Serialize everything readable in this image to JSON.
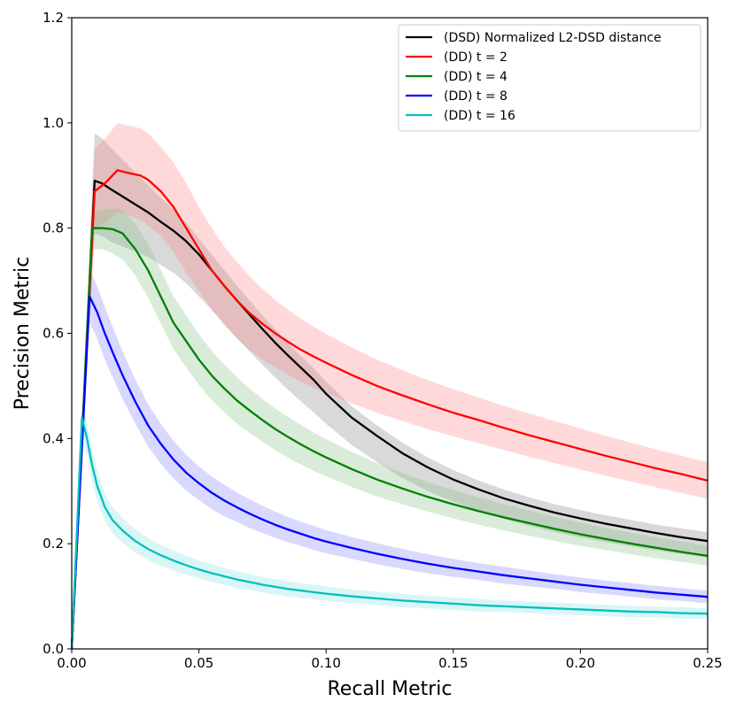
{
  "chart_data": {
    "type": "line",
    "title": "",
    "xlabel": "Recall Metric",
    "ylabel": "Precision Metric",
    "xlim": [
      0.0,
      0.25
    ],
    "ylim": [
      0.0,
      1.2
    ],
    "xticks": [
      0.0,
      0.05,
      0.1,
      0.15,
      0.2,
      0.25
    ],
    "xtick_labels": [
      "0.00",
      "0.05",
      "0.10",
      "0.15",
      "0.20",
      "0.25"
    ],
    "yticks": [
      0.0,
      0.2,
      0.4,
      0.6,
      0.8,
      1.0,
      1.2
    ],
    "ytick_labels": [
      "0.0",
      "0.2",
      "0.4",
      "0.6",
      "0.8",
      "1.0",
      "1.2"
    ],
    "grid": false,
    "legend_position": "top-right",
    "series": [
      {
        "name": "(DSD) Normalized L2-DSD distance",
        "color": "#000000",
        "band_color": "#808080",
        "x": [
          0.0,
          0.009,
          0.012,
          0.015,
          0.02,
          0.025,
          0.03,
          0.035,
          0.04,
          0.045,
          0.05,
          0.055,
          0.06,
          0.065,
          0.07,
          0.075,
          0.08,
          0.085,
          0.09,
          0.095,
          0.1,
          0.11,
          0.12,
          0.13,
          0.14,
          0.15,
          0.16,
          0.17,
          0.18,
          0.19,
          0.2,
          0.21,
          0.22,
          0.23,
          0.24,
          0.25
        ],
        "y": [
          0.0,
          0.89,
          0.885,
          0.875,
          0.86,
          0.845,
          0.83,
          0.812,
          0.795,
          0.775,
          0.75,
          0.72,
          0.69,
          0.662,
          0.635,
          0.608,
          0.582,
          0.558,
          0.535,
          0.512,
          0.485,
          0.44,
          0.405,
          0.372,
          0.345,
          0.322,
          0.303,
          0.286,
          0.272,
          0.259,
          0.248,
          0.238,
          0.229,
          0.22,
          0.212,
          0.205
        ],
        "upper": [
          0.0,
          0.98,
          0.97,
          0.955,
          0.93,
          0.905,
          0.882,
          0.858,
          0.835,
          0.81,
          0.78,
          0.75,
          0.72,
          0.69,
          0.662,
          0.634,
          0.607,
          0.582,
          0.557,
          0.534,
          0.508,
          0.462,
          0.425,
          0.392,
          0.364,
          0.34,
          0.32,
          0.303,
          0.288,
          0.275,
          0.264,
          0.254,
          0.245,
          0.236,
          0.229,
          0.222
        ],
        "lower": [
          0.0,
          0.79,
          0.785,
          0.775,
          0.765,
          0.755,
          0.745,
          0.73,
          0.715,
          0.695,
          0.67,
          0.645,
          0.618,
          0.59,
          0.565,
          0.54,
          0.516,
          0.493,
          0.471,
          0.45,
          0.428,
          0.388,
          0.355,
          0.325,
          0.3,
          0.28,
          0.262,
          0.247,
          0.234,
          0.222,
          0.212,
          0.203,
          0.195,
          0.187,
          0.18,
          0.174
        ]
      },
      {
        "name": "(DD) t = 2",
        "color": "#ff0000",
        "band_color": "#ff8080",
        "x": [
          0.0,
          0.009,
          0.013,
          0.018,
          0.022,
          0.027,
          0.03,
          0.035,
          0.04,
          0.045,
          0.05,
          0.055,
          0.06,
          0.065,
          0.07,
          0.075,
          0.08,
          0.085,
          0.09,
          0.095,
          0.1,
          0.11,
          0.12,
          0.13,
          0.14,
          0.15,
          0.16,
          0.17,
          0.18,
          0.19,
          0.2,
          0.21,
          0.22,
          0.23,
          0.24,
          0.25
        ],
        "y": [
          0.0,
          0.87,
          0.885,
          0.91,
          0.905,
          0.9,
          0.892,
          0.87,
          0.84,
          0.8,
          0.76,
          0.72,
          0.69,
          0.662,
          0.638,
          0.618,
          0.6,
          0.584,
          0.569,
          0.556,
          0.544,
          0.521,
          0.5,
          0.482,
          0.465,
          0.449,
          0.435,
          0.42,
          0.406,
          0.393,
          0.38,
          0.367,
          0.355,
          0.343,
          0.332,
          0.32
        ],
        "upper": [
          0.0,
          0.95,
          0.97,
          1.0,
          0.995,
          0.99,
          0.98,
          0.955,
          0.925,
          0.885,
          0.84,
          0.8,
          0.765,
          0.735,
          0.708,
          0.684,
          0.663,
          0.645,
          0.628,
          0.613,
          0.599,
          0.573,
          0.55,
          0.53,
          0.511,
          0.494,
          0.478,
          0.462,
          0.447,
          0.433,
          0.419,
          0.405,
          0.392,
          0.379,
          0.367,
          0.355
        ],
        "lower": [
          0.0,
          0.8,
          0.81,
          0.83,
          0.825,
          0.815,
          0.805,
          0.785,
          0.755,
          0.715,
          0.68,
          0.645,
          0.615,
          0.59,
          0.568,
          0.55,
          0.535,
          0.521,
          0.508,
          0.497,
          0.487,
          0.467,
          0.449,
          0.433,
          0.418,
          0.404,
          0.391,
          0.378,
          0.365,
          0.353,
          0.341,
          0.329,
          0.318,
          0.307,
          0.296,
          0.285
        ]
      },
      {
        "name": "(DD) t = 4",
        "color": "#008000",
        "band_color": "#80c080",
        "x": [
          0.0,
          0.008,
          0.012,
          0.016,
          0.02,
          0.025,
          0.03,
          0.035,
          0.04,
          0.045,
          0.05,
          0.055,
          0.06,
          0.065,
          0.07,
          0.075,
          0.08,
          0.085,
          0.09,
          0.095,
          0.1,
          0.11,
          0.12,
          0.13,
          0.14,
          0.15,
          0.16,
          0.17,
          0.18,
          0.19,
          0.2,
          0.21,
          0.22,
          0.23,
          0.24,
          0.25
        ],
        "y": [
          0.0,
          0.8,
          0.8,
          0.798,
          0.79,
          0.76,
          0.72,
          0.67,
          0.62,
          0.585,
          0.55,
          0.52,
          0.495,
          0.472,
          0.453,
          0.435,
          0.418,
          0.403,
          0.389,
          0.376,
          0.364,
          0.342,
          0.322,
          0.305,
          0.289,
          0.275,
          0.262,
          0.25,
          0.239,
          0.228,
          0.218,
          0.209,
          0.2,
          0.192,
          0.184,
          0.177
        ],
        "upper": [
          0.0,
          0.83,
          0.835,
          0.838,
          0.835,
          0.808,
          0.77,
          0.72,
          0.67,
          0.634,
          0.598,
          0.567,
          0.54,
          0.516,
          0.495,
          0.475,
          0.457,
          0.441,
          0.426,
          0.412,
          0.399,
          0.375,
          0.353,
          0.334,
          0.317,
          0.302,
          0.288,
          0.275,
          0.263,
          0.251,
          0.24,
          0.23,
          0.221,
          0.212,
          0.204,
          0.196
        ],
        "lower": [
          0.0,
          0.76,
          0.76,
          0.752,
          0.74,
          0.71,
          0.668,
          0.618,
          0.57,
          0.535,
          0.502,
          0.473,
          0.45,
          0.428,
          0.41,
          0.394,
          0.378,
          0.364,
          0.351,
          0.339,
          0.328,
          0.308,
          0.29,
          0.275,
          0.261,
          0.248,
          0.236,
          0.225,
          0.215,
          0.205,
          0.196,
          0.188,
          0.18,
          0.172,
          0.165,
          0.158
        ]
      },
      {
        "name": "(DD) t = 8",
        "color": "#0000ff",
        "band_color": "#8080ff",
        "x": [
          0.0,
          0.007,
          0.01,
          0.013,
          0.016,
          0.02,
          0.025,
          0.03,
          0.035,
          0.04,
          0.045,
          0.05,
          0.055,
          0.06,
          0.065,
          0.07,
          0.075,
          0.08,
          0.085,
          0.09,
          0.095,
          0.1,
          0.11,
          0.12,
          0.13,
          0.14,
          0.15,
          0.16,
          0.17,
          0.18,
          0.19,
          0.2,
          0.21,
          0.22,
          0.23,
          0.24,
          0.25
        ],
        "y": [
          0.0,
          0.67,
          0.64,
          0.6,
          0.565,
          0.52,
          0.47,
          0.425,
          0.39,
          0.36,
          0.335,
          0.315,
          0.297,
          0.282,
          0.269,
          0.257,
          0.246,
          0.236,
          0.227,
          0.219,
          0.211,
          0.204,
          0.192,
          0.181,
          0.171,
          0.162,
          0.154,
          0.147,
          0.14,
          0.134,
          0.128,
          0.122,
          0.117,
          0.112,
          0.107,
          0.103,
          0.099
        ],
        "upper": [
          0.0,
          0.72,
          0.69,
          0.65,
          0.613,
          0.565,
          0.512,
          0.465,
          0.428,
          0.396,
          0.369,
          0.347,
          0.328,
          0.312,
          0.297,
          0.284,
          0.272,
          0.261,
          0.251,
          0.242,
          0.234,
          0.226,
          0.213,
          0.201,
          0.19,
          0.18,
          0.171,
          0.163,
          0.156,
          0.149,
          0.142,
          0.136,
          0.13,
          0.125,
          0.12,
          0.115,
          0.111
        ],
        "lower": [
          0.0,
          0.62,
          0.59,
          0.55,
          0.517,
          0.475,
          0.428,
          0.385,
          0.352,
          0.324,
          0.301,
          0.283,
          0.266,
          0.252,
          0.241,
          0.23,
          0.22,
          0.211,
          0.203,
          0.196,
          0.188,
          0.182,
          0.171,
          0.161,
          0.152,
          0.144,
          0.137,
          0.131,
          0.124,
          0.119,
          0.114,
          0.108,
          0.104,
          0.099,
          0.094,
          0.091,
          0.087
        ]
      },
      {
        "name": "(DD) t = 16",
        "color": "#00bfbf",
        "band_color": "#80e0e0",
        "x": [
          0.0,
          0.004,
          0.006,
          0.008,
          0.01,
          0.013,
          0.016,
          0.02,
          0.025,
          0.03,
          0.035,
          0.04,
          0.045,
          0.05,
          0.055,
          0.06,
          0.065,
          0.07,
          0.075,
          0.08,
          0.085,
          0.09,
          0.095,
          0.1,
          0.11,
          0.12,
          0.13,
          0.14,
          0.15,
          0.16,
          0.17,
          0.18,
          0.19,
          0.2,
          0.21,
          0.22,
          0.23,
          0.24,
          0.25
        ],
        "y": [
          0.0,
          0.44,
          0.4,
          0.35,
          0.31,
          0.27,
          0.245,
          0.225,
          0.205,
          0.19,
          0.178,
          0.168,
          0.159,
          0.151,
          0.144,
          0.138,
          0.132,
          0.127,
          0.122,
          0.118,
          0.114,
          0.111,
          0.108,
          0.105,
          0.1,
          0.096,
          0.092,
          0.089,
          0.086,
          0.083,
          0.081,
          0.079,
          0.077,
          0.075,
          0.073,
          0.071,
          0.07,
          0.068,
          0.067
        ],
        "upper": [
          0.0,
          0.47,
          0.43,
          0.38,
          0.338,
          0.296,
          0.27,
          0.248,
          0.227,
          0.211,
          0.198,
          0.187,
          0.177,
          0.168,
          0.161,
          0.154,
          0.148,
          0.142,
          0.137,
          0.133,
          0.129,
          0.125,
          0.122,
          0.119,
          0.113,
          0.109,
          0.105,
          0.101,
          0.098,
          0.095,
          0.092,
          0.09,
          0.088,
          0.086,
          0.084,
          0.082,
          0.08,
          0.079,
          0.077
        ],
        "lower": [
          0.0,
          0.41,
          0.37,
          0.32,
          0.282,
          0.244,
          0.22,
          0.202,
          0.183,
          0.169,
          0.158,
          0.149,
          0.141,
          0.134,
          0.127,
          0.122,
          0.116,
          0.112,
          0.107,
          0.103,
          0.099,
          0.097,
          0.094,
          0.091,
          0.087,
          0.083,
          0.079,
          0.077,
          0.074,
          0.071,
          0.07,
          0.068,
          0.066,
          0.064,
          0.062,
          0.06,
          0.06,
          0.057,
          0.057
        ]
      }
    ]
  }
}
